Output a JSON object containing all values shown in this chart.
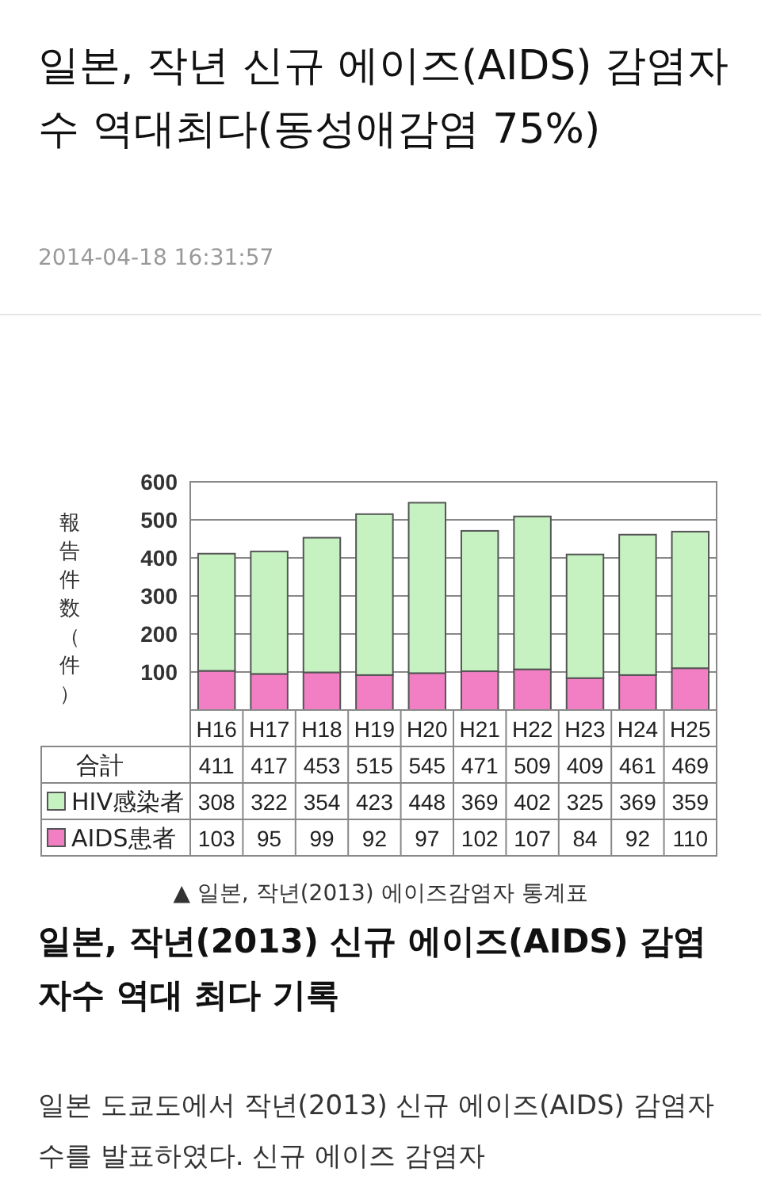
{
  "chart_data": {
    "type": "bar",
    "stacked": true,
    "title": "일본, 작년 신규 에이즈(AIDS) 감염자수 역대최다(동성애감염 75%)",
    "ylabel": "報告件数（件）",
    "categories": [
      "H16",
      "H17",
      "H18",
      "H19",
      "H20",
      "H21",
      "H22",
      "H23",
      "H24",
      "H25"
    ],
    "series": [
      {
        "name": "AIDS患者",
        "color": "#f27fc4",
        "values": [
          103,
          95,
          99,
          92,
          97,
          102,
          107,
          84,
          92,
          110
        ]
      },
      {
        "name": "HIV感染者",
        "color": "#c6f2c2",
        "values": [
          308,
          322,
          354,
          423,
          448,
          369,
          402,
          325,
          369,
          359
        ]
      }
    ],
    "totals": [
      "411",
      "417",
      "453",
      "515",
      "545",
      "471",
      "509",
      "409",
      "461",
      "469"
    ],
    "data_labels": true,
    "ylim": [
      0,
      600
    ],
    "yticks": [
      {
        "value": 0,
        "label": null
      },
      100,
      200,
      300,
      400,
      500,
      600
    ],
    "grid": "y",
    "legend": "bottom",
    "annotations": [
      "2014-04-18 16:31:57",
      "合計",
      "▲ 일본, 작년(2013) 에이즈감염자 통계표",
      "일본, 작년(2013) 신규 에이즈(AIDS) 감염자수 역대 최다 기록",
      "일본 도쿄도에서 작년(2013) 신규 에이즈(AIDS) 감염자수를 발표하였다. 신규 에이즈 감염자"
    ]
  }
}
